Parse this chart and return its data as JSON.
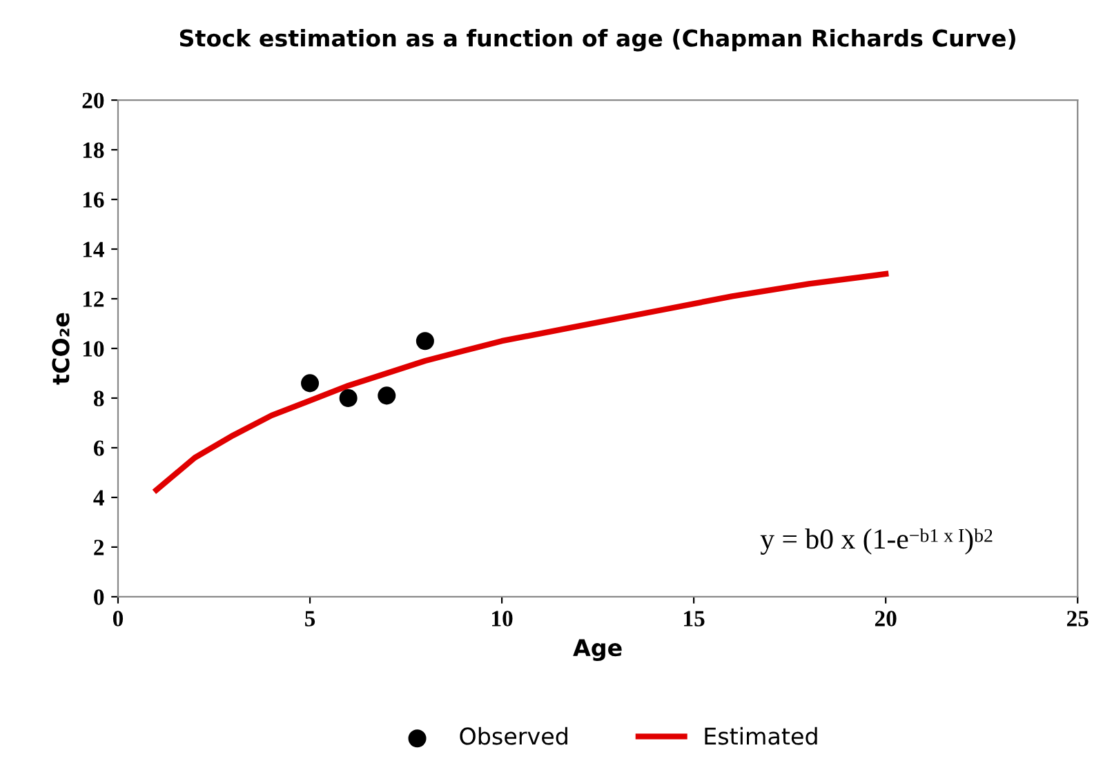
{
  "chart_data": {
    "type": "scatter",
    "title": "Stock estimation as a function of age (Chapman Richards Curve)",
    "xlabel": "Age",
    "ylabel": "tCO₂e",
    "xlim": [
      0,
      25
    ],
    "xticks": [
      0,
      5,
      10,
      15,
      20,
      25
    ],
    "ylim": [
      0,
      20
    ],
    "yticks": [
      0,
      2,
      4,
      6,
      8,
      10,
      12,
      14,
      16,
      18,
      20
    ],
    "grid": false,
    "legend": "bottom",
    "annotations": [
      "y = b0 x (1-e$^{−b1 x I}$)$^{b2}$"
    ],
    "series": [
      {
        "name": "Observed",
        "color": "#000000",
        "marker": "circle",
        "x": [
          5,
          6,
          7,
          8
        ],
        "values": [
          8.6,
          8.0,
          8.1,
          10.3
        ]
      },
      {
        "name": "Estimated",
        "type": "line",
        "color": "#e00000",
        "marker": "none",
        "line_style": "solid",
        "x": [
          1,
          2,
          3,
          4,
          5,
          6,
          7,
          8,
          9,
          10,
          12,
          14,
          16,
          18,
          20
        ],
        "values": [
          4.3,
          5.6,
          6.5,
          7.3,
          7.9,
          8.5,
          9.0,
          9.5,
          9.9,
          10.3,
          10.9,
          11.5,
          12.1,
          12.6,
          13.0
        ]
      }
    ]
  }
}
